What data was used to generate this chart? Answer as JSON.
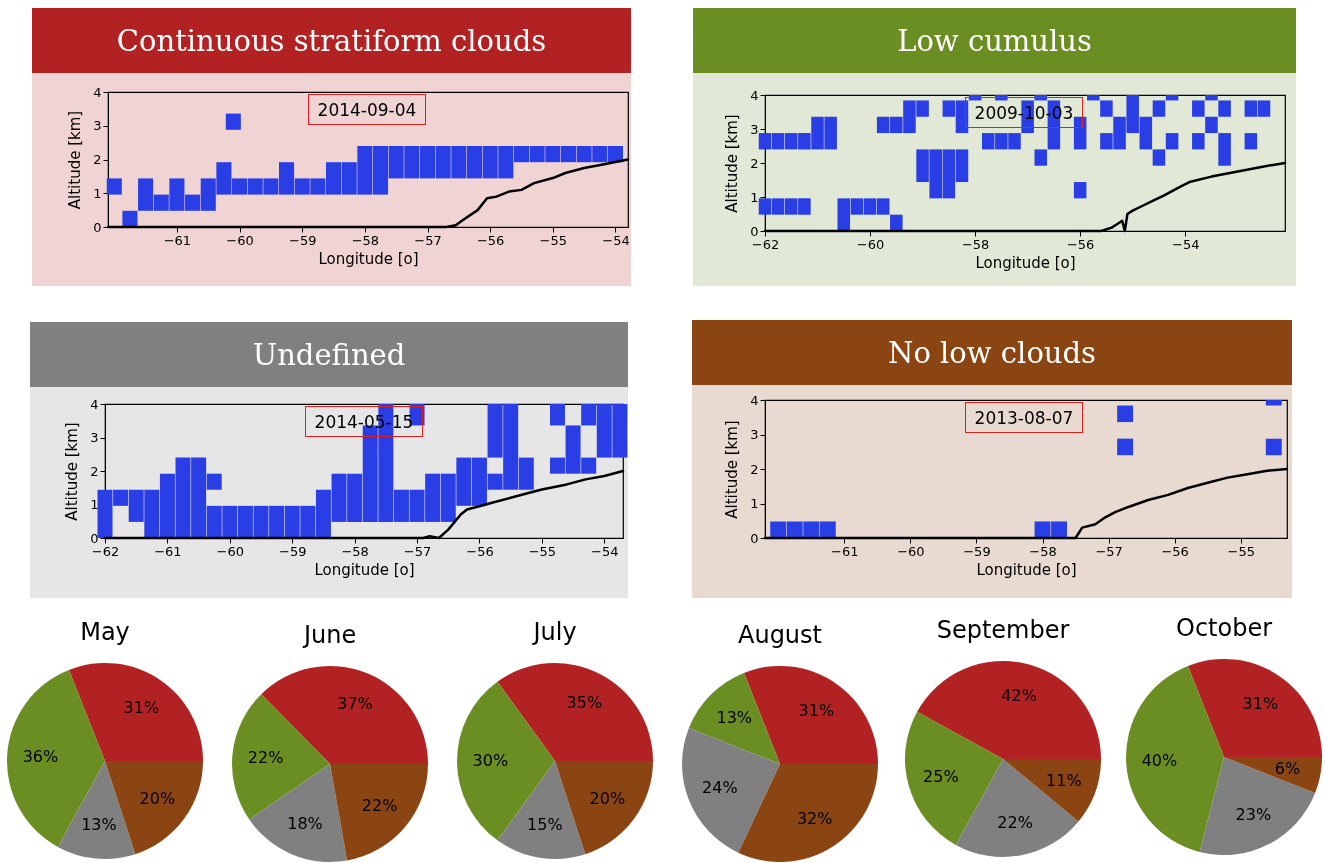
{
  "chart_data": [
    {
      "type": "bar",
      "title": "Continuous stratiform clouds",
      "xlabel": "Longitude [o]",
      "ylabel": "Altitude [km]",
      "xlim": [
        -62.1,
        -53.8
      ],
      "xticks": [
        -61,
        -60,
        -59,
        -58,
        -57,
        -56,
        -55,
        -54
      ],
      "ylim": [
        0,
        4
      ],
      "yticks": [
        0,
        1,
        2,
        3,
        4
      ],
      "annotations": [
        "2014-09-04"
      ],
      "series": [
        {
          "type": "bar",
          "color": "#2a3ee6",
          "x": [
            -62,
            -61.75,
            -61.5,
            -61.25,
            -61,
            -60.75,
            -60.5,
            -60.25,
            -60.1,
            -60,
            -59.75,
            -59.5,
            -59.25,
            -59,
            -58.75,
            -58.5,
            -58.25,
            -58,
            -57.75,
            -57.5,
            -57.25,
            -57,
            -56.75,
            -56.5,
            -56.25,
            -56,
            -55.75,
            -55.5,
            -55.25,
            -55,
            -54.75,
            -54.5,
            -54.25,
            -54
          ],
          "base": [
            0.96,
            0,
            0.48,
            0.48,
            0.48,
            0.48,
            0.48,
            0.96,
            2.88,
            0.96,
            0.96,
            0.96,
            0.96,
            0.96,
            0.96,
            0.96,
            0.96,
            0.96,
            0.96,
            1.44,
            1.44,
            1.44,
            1.44,
            1.44,
            1.44,
            1.44,
            1.44,
            1.92,
            1.92,
            1.92,
            1.92,
            1.92,
            1.92,
            1.92
          ],
          "values": [
            0.48,
            0.48,
            0.96,
            0.48,
            0.96,
            0.48,
            0.96,
            0.96,
            0.48,
            0.48,
            0.48,
            0.48,
            0.96,
            0.48,
            0.48,
            0.96,
            0.96,
            1.44,
            1.44,
            0.96,
            0.96,
            0.96,
            0.96,
            0.96,
            0.96,
            0.96,
            0.96,
            0.48,
            0.48,
            0.48,
            0.48,
            0.48,
            0.48,
            0.48
          ]
        },
        {
          "type": "line",
          "color": "#000000",
          "x": [
            -62.1,
            -56.7,
            -56.55,
            -56.4,
            -56.2,
            -56.05,
            -55.9,
            -55.7,
            -55.5,
            -55.3,
            -55,
            -54.8,
            -54.5,
            -54.2,
            -53.8
          ],
          "values": [
            0,
            0,
            0.05,
            0.25,
            0.5,
            0.85,
            0.9,
            1.05,
            1.1,
            1.3,
            1.45,
            1.6,
            1.75,
            1.85,
            2
          ]
        }
      ]
    },
    {
      "type": "bar",
      "title": "Low cumulus",
      "xlabel": "Longitude [o]",
      "ylabel": "Altitude [km]",
      "xlim": [
        -62,
        -52.1
      ],
      "xticks": [
        -62,
        -60,
        -58,
        -56,
        -54
      ],
      "ylim": [
        0,
        4
      ],
      "yticks": [
        0,
        1,
        2,
        3,
        4
      ],
      "annotations": [
        "2009-10-03"
      ],
      "series": [
        {
          "type": "bar",
          "color": "#2a3ee6",
          "x": [
            -62,
            -61.75,
            -61.5,
            -61.25,
            -61,
            -60.75,
            -60.5,
            -60.25,
            -60,
            -59.75,
            -59.5,
            -59.25,
            -59,
            -58.75,
            -58.5,
            -58.25,
            -58,
            -57.75,
            -57.5,
            -57.25,
            -57,
            -56.75,
            -56.5,
            -56,
            -55.75,
            -55.5,
            -55.25,
            -55,
            -54.75,
            -54.5,
            -54.25,
            -53.75,
            -53.5,
            -53.25,
            -52.75,
            -52.5
          ],
          "base": [
            0.48,
            0.48,
            0.48,
            0.48,
            2.4,
            2.4,
            0,
            0.48,
            0.48,
            0.48,
            0,
            2.88,
            1.44,
            0.96,
            0.96,
            1.44,
            3.84,
            2.4,
            2.4,
            2.4,
            2.88,
            1.92,
            2.4,
            0.96,
            3.84,
            2.4,
            2.4,
            2.88,
            2.4,
            1.92,
            2.4,
            2.4,
            2.88,
            1.92,
            2.4,
            3.36
          ],
          "values": [
            0.48,
            0.48,
            0.48,
            0.48,
            0.96,
            0.96,
            0.96,
            0.48,
            0.48,
            0.48,
            0.48,
            0.96,
            0.96,
            1.44,
            1.44,
            0.96,
            0.16,
            0.48,
            0.48,
            0.48,
            0.96,
            0.48,
            1.44,
            0.48,
            0.16,
            0.48,
            0.96,
            1.12,
            0.96,
            0.48,
            0.48,
            0.48,
            0.48,
            0.96,
            0.48,
            0.48
          ]
        },
        {
          "type": "bar",
          "color": "#2a3ee6",
          "x": [
            -62,
            -61.75,
            -61.5,
            -61.25,
            -59.75,
            -59.5,
            -59,
            -58.5,
            -58.25,
            -57.5,
            -56.75,
            -56,
            -55.5,
            -54.5,
            -54.25,
            -53.75,
            -53.5,
            -53.25,
            -52.75
          ],
          "base": [
            2.4,
            2.4,
            2.4,
            2.4,
            2.88,
            2.88,
            3.36,
            3.36,
            2.88,
            3.84,
            3.84,
            2.4,
            3.36,
            3.36,
            3.84,
            3.36,
            3.84,
            3.36,
            3.36
          ],
          "values": [
            0.48,
            0.48,
            0.48,
            0.48,
            0.48,
            0.48,
            0.48,
            0.48,
            0.96,
            0.16,
            0.16,
            0.96,
            0.48,
            0.48,
            0.16,
            0.48,
            0.16,
            0.48,
            0.48
          ]
        },
        {
          "type": "line",
          "color": "#000000",
          "x": [
            -62,
            -55.6,
            -55.4,
            -55.3,
            -55.2,
            -55.15,
            -55.1,
            -55,
            -54.8,
            -54.6,
            -54.4,
            -54.1,
            -53.9,
            -53.5,
            -53,
            -52.5,
            -52.1
          ],
          "values": [
            0,
            0,
            0.1,
            0.2,
            0.3,
            0,
            0.5,
            0.6,
            0.75,
            0.9,
            1.05,
            1.3,
            1.45,
            1.6,
            1.75,
            1.9,
            2
          ]
        }
      ]
    },
    {
      "type": "bar",
      "title": "Undefined",
      "xlabel": "Longitude [o]",
      "ylabel": "Altitude [km]",
      "xlim": [
        -62,
        -53.7
      ],
      "xticks": [
        -62,
        -61,
        -60,
        -59,
        -58,
        -57,
        -56,
        -55,
        -54
      ],
      "ylim": [
        0,
        4
      ],
      "yticks": [
        0,
        1,
        2,
        3,
        4
      ],
      "annotations": [
        "2014-05-15"
      ],
      "series": [
        {
          "type": "bar",
          "color": "#2a3ee6",
          "x": [
            -62,
            -61.75,
            -61.5,
            -61.25,
            -61,
            -60.75,
            -60.5,
            -60.25,
            -60,
            -59.75,
            -59.5,
            -59.25,
            -59,
            -58.75,
            -58.5,
            -58.25,
            -58,
            -57.75,
            -57.5,
            -57.25,
            -57,
            -56.75,
            -56.5,
            -56.25,
            -56,
            -55.75,
            -55.5,
            -55.25,
            -54.75,
            -54.5,
            -54.25,
            -54,
            -53.75
          ],
          "base": [
            0,
            0.96,
            0.48,
            0,
            0,
            0,
            0,
            0,
            0,
            0,
            0,
            0,
            0,
            0,
            0,
            0.48,
            0.48,
            0.48,
            0.48,
            0.48,
            0.48,
            0.48,
            0.48,
            0.96,
            0.96,
            1.44,
            1.44,
            1.44,
            1.92,
            1.92,
            1.92,
            2.4,
            2.4
          ],
          "values": [
            1.44,
            0.48,
            0.96,
            1.44,
            1.92,
            2.4,
            2.4,
            0.96,
            0.96,
            0.96,
            0.96,
            0.96,
            0.96,
            0.96,
            1.44,
            1.44,
            1.44,
            2.88,
            3.52,
            0.96,
            0.96,
            1.44,
            1.44,
            1.44,
            1.44,
            0.48,
            2.56,
            0.96,
            0.48,
            1.44,
            0.48,
            1.6,
            1.6
          ]
        },
        {
          "type": "bar",
          "color": "#2a3ee6",
          "x": [
            -60.25,
            -57,
            -55.75,
            -54.75,
            -54.25
          ],
          "base": [
            1.44,
            3.36,
            2.4,
            3.36,
            3.36
          ],
          "values": [
            0.48,
            0.64,
            1.6,
            0.64,
            0.64
          ]
        },
        {
          "type": "line",
          "color": "#000000",
          "x": [
            -62,
            -56.9,
            -56.8,
            -56.65,
            -56.5,
            -56.3,
            -56.2,
            -56,
            -55.8,
            -55.5,
            -55.2,
            -55,
            -54.6,
            -54.3,
            -54,
            -53.7
          ],
          "values": [
            0,
            0,
            0.05,
            0,
            0.25,
            0.7,
            0.85,
            0.95,
            1.05,
            1.2,
            1.35,
            1.45,
            1.6,
            1.75,
            1.85,
            2
          ]
        }
      ]
    },
    {
      "type": "bar",
      "title": "No low clouds",
      "xlabel": "Longitude [o]",
      "ylabel": "Altitude [km]",
      "xlim": [
        -62.2,
        -54.3
      ],
      "xticks": [
        -61,
        -60,
        -59,
        -58,
        -57,
        -56,
        -55
      ],
      "ylim": [
        0,
        4
      ],
      "yticks": [
        0,
        1,
        2,
        3,
        4
      ],
      "annotations": [
        "2013-08-07"
      ],
      "series": [
        {
          "type": "bar",
          "color": "#2a3ee6",
          "x": [
            -62,
            -61.75,
            -61.5,
            -61.25,
            -58,
            -57.75,
            -56.75,
            -54.5
          ],
          "base": [
            0,
            0,
            0,
            0,
            0,
            0,
            2.4,
            2.4
          ],
          "values": [
            0.48,
            0.48,
            0.48,
            0.48,
            0.48,
            0.48,
            0.48,
            0.48
          ]
        },
        {
          "type": "bar",
          "color": "#2a3ee6",
          "x": [
            -56.75,
            -54.5
          ],
          "base": [
            3.36,
            3.84
          ],
          "values": [
            0.48,
            0.16
          ]
        },
        {
          "type": "line",
          "color": "#000000",
          "x": [
            -62.2,
            -57.5,
            -57.4,
            -57.2,
            -57.05,
            -56.9,
            -56.7,
            -56.4,
            -56.1,
            -55.8,
            -55.5,
            -55.2,
            -54.9,
            -54.6,
            -54.3
          ],
          "values": [
            0,
            0,
            0.3,
            0.4,
            0.6,
            0.75,
            0.9,
            1.1,
            1.25,
            1.45,
            1.6,
            1.75,
            1.85,
            1.95,
            2
          ]
        }
      ]
    },
    {
      "type": "pie",
      "title": "May",
      "categories": [
        null,
        null,
        null,
        null
      ],
      "values": [
        31,
        36,
        13,
        20
      ],
      "colors": [
        "#b22222",
        "#6b8e23",
        "#808080",
        "#8b4513"
      ],
      "value_labels": [
        "31%",
        "36%",
        "13%",
        "20%"
      ]
    },
    {
      "type": "pie",
      "title": "June",
      "categories": [
        null,
        null,
        null,
        null
      ],
      "values": [
        37,
        22,
        18,
        22
      ],
      "colors": [
        "#b22222",
        "#6b8e23",
        "#808080",
        "#8b4513"
      ],
      "value_labels": [
        "37%",
        "22%",
        "18%",
        "22%"
      ]
    },
    {
      "type": "pie",
      "title": "July",
      "categories": [
        null,
        null,
        null,
        null
      ],
      "values": [
        35,
        30,
        15,
        20
      ],
      "colors": [
        "#b22222",
        "#6b8e23",
        "#808080",
        "#8b4513"
      ],
      "value_labels": [
        "35%",
        "30%",
        "15%",
        "20%"
      ]
    },
    {
      "type": "pie",
      "title": "August",
      "categories": [
        null,
        null,
        null,
        null
      ],
      "values": [
        31,
        13,
        24,
        32
      ],
      "colors": [
        "#b22222",
        "#6b8e23",
        "#808080",
        "#8b4513"
      ],
      "value_labels": [
        "31%",
        "13%",
        "24%",
        "32%"
      ]
    },
    {
      "type": "pie",
      "title": "September",
      "categories": [
        null,
        null,
        null,
        null
      ],
      "values": [
        42,
        25,
        22,
        11
      ],
      "colors": [
        "#b22222",
        "#6b8e23",
        "#808080",
        "#8b4513"
      ],
      "value_labels": [
        "42%",
        "25%",
        "22%",
        "11%"
      ]
    },
    {
      "type": "pie",
      "title": "October",
      "categories": [
        null,
        null,
        null,
        null
      ],
      "values": [
        31,
        40,
        23,
        6
      ],
      "colors": [
        "#b22222",
        "#6b8e23",
        "#808080",
        "#8b4513"
      ],
      "value_labels": [
        "31%",
        "40%",
        "23%",
        "6%"
      ]
    }
  ]
}
